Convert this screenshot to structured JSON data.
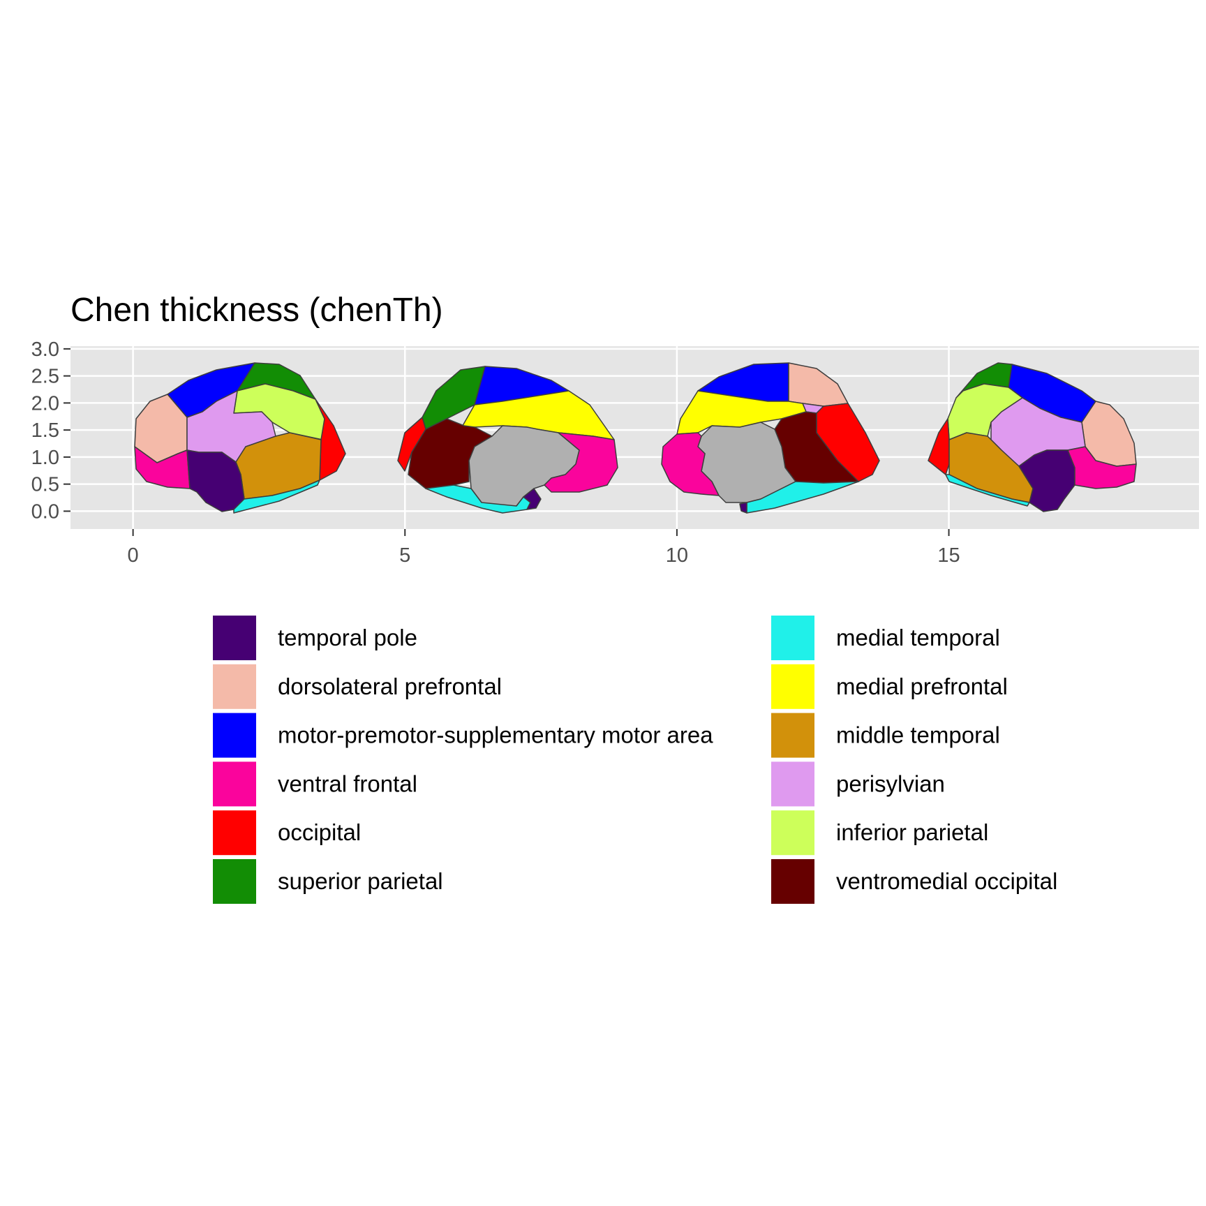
{
  "title": "Chen thickness (chenTh)",
  "axes": {
    "x_ticks": [
      "0",
      "5",
      "10",
      "15"
    ],
    "y_ticks": [
      "0.0",
      "0.5",
      "1.0",
      "1.5",
      "2.0",
      "2.5",
      "3.0"
    ],
    "panel_background": "#e5e5e5",
    "grid_color": "#ffffff"
  },
  "legend": {
    "items": [
      {
        "label": "temporal pole",
        "color": "#460073"
      },
      {
        "label": "dorsolateral prefrontal",
        "color": "#f4baa9"
      },
      {
        "label": "motor-premotor-supplementary motor area",
        "color": "#0000ff"
      },
      {
        "label": "ventral frontal",
        "color": "#fa049c"
      },
      {
        "label": "occipital",
        "color": "#ff0000"
      },
      {
        "label": "superior parietal",
        "color": "#128d05"
      },
      {
        "label": "medial temporal",
        "color": "#20f0e9"
      },
      {
        "label": "medial prefrontal",
        "color": "#ffff00"
      },
      {
        "label": "middle temporal",
        "color": "#d2910b"
      },
      {
        "label": "perisylvian",
        "color": "#df9aef"
      },
      {
        "label": "inferior parietal",
        "color": "#cdff5a"
      },
      {
        "label": "ventromedial occipital",
        "color": "#660000"
      }
    ]
  },
  "chart_data": {
    "type": "map",
    "title": "Chen thickness (chenTh)",
    "xlim": [
      -1.15,
      19.6
    ],
    "ylim": [
      -0.33,
      3.05
    ],
    "x_ticks": [
      0,
      5,
      10,
      15
    ],
    "y_ticks": [
      0.0,
      0.5,
      1.0,
      1.5,
      2.0,
      2.5,
      3.0
    ],
    "views": [
      "left lateral",
      "left medial",
      "right medial",
      "right lateral"
    ],
    "medial_wall_color": "#b0b0b0",
    "grid": true
  }
}
